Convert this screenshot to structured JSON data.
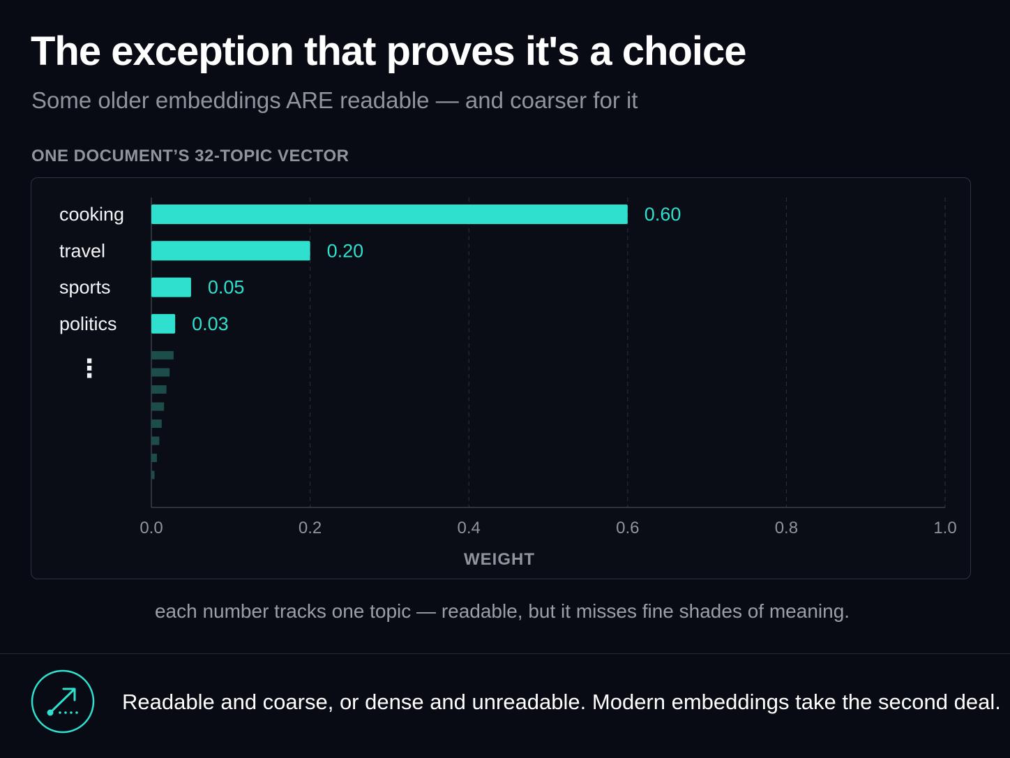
{
  "header": {
    "title": "The exception that proves it's a choice",
    "subtitle": "Some older embeddings ARE readable — and coarser for it"
  },
  "section_label": "ONE DOCUMENT’S 32-TOPIC VECTOR",
  "chart_data": {
    "type": "bar",
    "orientation": "horizontal",
    "categories": [
      "cooking",
      "travel",
      "sports",
      "politics"
    ],
    "values": [
      0.6,
      0.2,
      0.05,
      0.03
    ],
    "value_labels": [
      "0.60",
      "0.20",
      "0.05",
      "0.03"
    ],
    "ellipsis_label": "⋮",
    "tail_values": [
      0.028,
      0.023,
      0.019,
      0.016,
      0.013,
      0.01,
      0.007,
      0.004
    ],
    "xlabel": "WEIGHT",
    "xlim": [
      0,
      1.0
    ],
    "xticks": [
      "0.0",
      "0.2",
      "0.4",
      "0.6",
      "0.8",
      "1.0"
    ],
    "grid": "vertical dashed",
    "colors": {
      "bar": "#2fe0cf",
      "tail_bar": "#1c4d4a",
      "value_label": "#2fe0cf",
      "grid": "#2d323b",
      "axis": "#3a404a",
      "tick_label": "#8f949d",
      "category_label": "#f2f4f7"
    }
  },
  "caption": "each number tracks one topic — readable, but it misses fine shades of meaning.",
  "footer": {
    "icon": "trend-arrow-icon",
    "accent_color": "#2fe0cf",
    "text": "Readable and coarse, or dense and unreadable. Modern embeddings take the second deal."
  }
}
